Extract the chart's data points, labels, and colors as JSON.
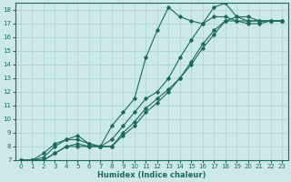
{
  "xlabel": "Humidex (Indice chaleur)",
  "ylabel": "",
  "xlim": [
    -0.5,
    23.5
  ],
  "ylim": [
    7,
    18.5
  ],
  "xticks": [
    0,
    1,
    2,
    3,
    4,
    5,
    6,
    7,
    8,
    9,
    10,
    11,
    12,
    13,
    14,
    15,
    16,
    17,
    18,
    19,
    20,
    21,
    22,
    23
  ],
  "yticks": [
    7,
    8,
    9,
    10,
    11,
    12,
    13,
    14,
    15,
    16,
    17,
    18
  ],
  "bg_color": "#cde8e8",
  "line_color": "#1a6b5a",
  "grid_color": "#b0d4d4",
  "series": [
    {
      "x": [
        0,
        1,
        2,
        3,
        4,
        5,
        6,
        7,
        8,
        9,
        10,
        11,
        12,
        13,
        14,
        15,
        16,
        17,
        18,
        19,
        20,
        21,
        22,
        23
      ],
      "y": [
        7,
        7,
        7.5,
        8.2,
        8.5,
        8.5,
        8.2,
        8.0,
        9.5,
        10.5,
        11.5,
        14.5,
        16.5,
        18.2,
        17.5,
        17.2,
        17.0,
        17.5,
        17.5,
        17.2,
        17.0,
        17.0,
        17.2,
        17.2
      ]
    },
    {
      "x": [
        0,
        1,
        2,
        3,
        4,
        5,
        6,
        7,
        8,
        9,
        10,
        11,
        12,
        13,
        14,
        15,
        16,
        17,
        18,
        19,
        20,
        21,
        22,
        23
      ],
      "y": [
        7,
        7,
        7.2,
        8.0,
        8.5,
        8.8,
        8.2,
        8.0,
        8.5,
        9.5,
        10.5,
        11.5,
        12.0,
        13.0,
        14.5,
        15.8,
        17.0,
        18.2,
        18.5,
        17.5,
        17.2,
        17.2,
        17.2,
        17.2
      ]
    },
    {
      "x": [
        0,
        1,
        2,
        3,
        4,
        5,
        6,
        7,
        8,
        9,
        10,
        11,
        12,
        13,
        14,
        15,
        16,
        17,
        18,
        19,
        20,
        21,
        22,
        23
      ],
      "y": [
        7,
        7,
        7.0,
        7.5,
        8.0,
        8.2,
        8.0,
        8.0,
        8.0,
        9.0,
        9.8,
        10.8,
        11.5,
        12.2,
        13.0,
        14.0,
        15.2,
        16.2,
        17.2,
        17.5,
        17.5,
        17.2,
        17.2,
        17.2
      ]
    },
    {
      "x": [
        0,
        1,
        2,
        3,
        4,
        5,
        6,
        7,
        8,
        9,
        10,
        11,
        12,
        13,
        14,
        15,
        16,
        17,
        18,
        19,
        20,
        21,
        22,
        23
      ],
      "y": [
        7,
        7,
        7.0,
        7.5,
        8.0,
        8.0,
        8.0,
        8.0,
        8.0,
        8.8,
        9.5,
        10.5,
        11.2,
        12.0,
        13.0,
        14.2,
        15.5,
        16.5,
        17.2,
        17.2,
        17.2,
        17.2,
        17.2,
        17.2
      ]
    }
  ]
}
